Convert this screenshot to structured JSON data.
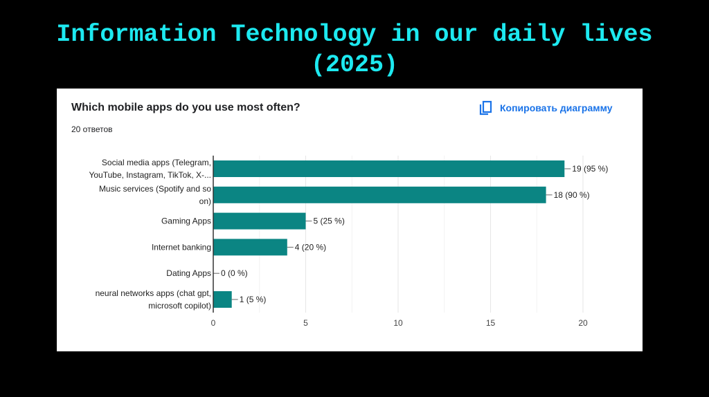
{
  "slide_title_line1": "Information Technology in our daily lives",
  "slide_title_line2": "(2025)",
  "card": {
    "question": "Which mobile apps do you use most often?",
    "responses": "20 ответов",
    "copy_label": "Копировать диаграмму",
    "copy_icon": "copy-icon"
  },
  "chart_data": {
    "type": "bar",
    "orientation": "horizontal",
    "title": "Which mobile apps do you use most often?",
    "categories": [
      [
        "Social media apps (Telegram,",
        "YouTube, Instagram, TikTok, X-..."
      ],
      [
        "Music services (Spotify and so",
        "on)"
      ],
      [
        "Gaming Apps"
      ],
      [
        "Internet banking"
      ],
      [
        "Dating Apps"
      ],
      [
        "neural networks apps (chat gpt,",
        "microsoft copilot)"
      ]
    ],
    "values": [
      19,
      18,
      5,
      4,
      0,
      1
    ],
    "labels": [
      "19 (95 %)",
      "18 (90 %)",
      "5 (25 %)",
      "4 (20 %)",
      "0 (0 %)",
      "1 (5 %)"
    ],
    "xlim": [
      0,
      20
    ],
    "xticks": [
      "0",
      "5",
      "10",
      "15",
      "20"
    ],
    "grid": true,
    "bar_color": "#0b8583"
  }
}
